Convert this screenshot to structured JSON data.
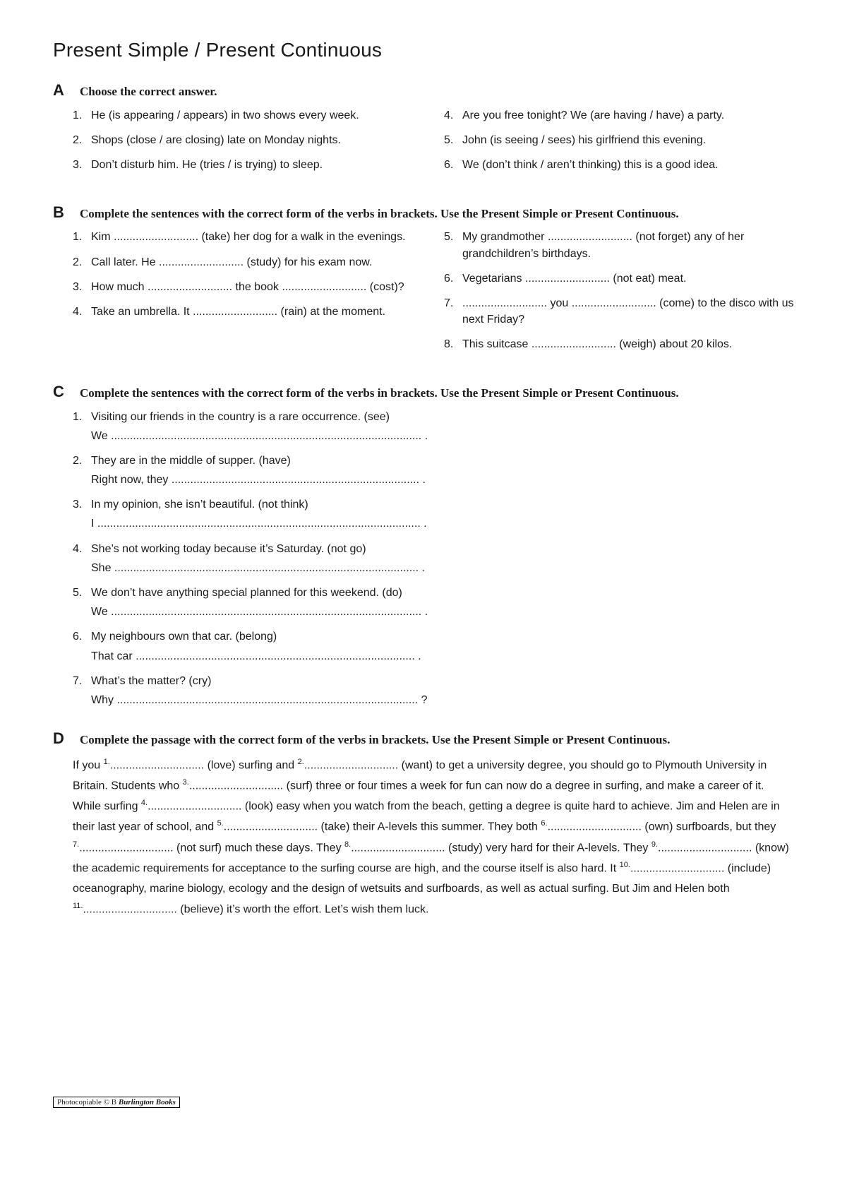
{
  "title": "Present Simple / Present Continuous",
  "sectionA": {
    "letter": "A",
    "instruction": "Choose the correct answer.",
    "left": [
      {
        "n": "1.",
        "t": "He (is appearing / appears) in two shows every week."
      },
      {
        "n": "2.",
        "t": "Shops (close / are closing) late on Monday nights."
      },
      {
        "n": "3.",
        "t": "Don’t disturb him. He (tries / is trying) to sleep."
      }
    ],
    "right": [
      {
        "n": "4.",
        "t": "Are you free tonight? We (are having / have) a party."
      },
      {
        "n": "5.",
        "t": "John (is seeing / sees) his girlfriend this evening."
      },
      {
        "n": "6.",
        "t": "We (don’t think / aren’t thinking) this is a good idea."
      }
    ]
  },
  "sectionB": {
    "letter": "B",
    "instruction": "Complete the sentences with the correct form of the verbs in brackets. Use the Present Simple or Present Continuous.",
    "left": [
      {
        "n": "1.",
        "t": "Kim ........................... (take) her dog for a walk in the evenings."
      },
      {
        "n": "2.",
        "t": "Call later. He ........................... (study) for his exam now."
      },
      {
        "n": "3.",
        "t": "How much ........................... the book ........................... (cost)?"
      },
      {
        "n": "4.",
        "t": "Take an umbrella. It ........................... (rain) at the moment."
      }
    ],
    "right": [
      {
        "n": "5.",
        "t": "My grandmother ........................... (not forget) any of her grandchildren’s birthdays."
      },
      {
        "n": "6.",
        "t": "Vegetarians ........................... (not eat) meat."
      },
      {
        "n": "7.",
        "t": "........................... you ........................... (come) to the disco with us next Friday?"
      },
      {
        "n": "8.",
        "t": "This suitcase ........................... (weigh) about 20 kilos."
      }
    ]
  },
  "sectionC": {
    "letter": "C",
    "instruction": "Complete the sentences with the correct form of the verbs in brackets. Use the Present Simple or Present Continuous.",
    "items": [
      {
        "n": "1.",
        "prompt": "Visiting our friends in the country is a rare occurrence. (see)",
        "ans": "We  ................................................................................................... ."
      },
      {
        "n": "2.",
        "prompt": "They are in the middle of supper. (have)",
        "ans": "Right now, they  ............................................................................... ."
      },
      {
        "n": "3.",
        "prompt": "In my opinion, she isn’t beautiful. (not think)",
        "ans": "I  ....................................................................................................... ."
      },
      {
        "n": "4.",
        "prompt": "She’s not working today because it’s Saturday. (not go)",
        "ans": "She  ................................................................................................. ."
      },
      {
        "n": "5.",
        "prompt": "We don’t have anything special planned for this weekend. (do)",
        "ans": "We  ................................................................................................... ."
      },
      {
        "n": "6.",
        "prompt": "My neighbours own that car. (belong)",
        "ans": "That car  ......................................................................................... ."
      },
      {
        "n": "7.",
        "prompt": "What’s the matter? (cry)",
        "ans": "Why  ................................................................................................ ?"
      }
    ]
  },
  "sectionD": {
    "letter": "D",
    "instruction": "Complete the passage with the correct form of the verbs in brackets. Use the Present Simple or Present Continuous.",
    "passage_html": "If you <sup>1.</sup>.............................. (love) surfing and <sup>2.</sup>.............................. (want) to get a university degree, you should go to Plymouth University in Britain. Students who <sup>3.</sup>.............................. (surf) three or four times a week for fun can now do a degree in surfing, and make a career of it. While surfing <sup>4.</sup>.............................. (look) easy when you watch from the beach, getting a degree is quite hard to achieve. Jim and Helen are in their last year of school, and <sup>5.</sup>.............................. (take) their A-levels this summer. They both <sup>6.</sup>.............................. (own) surfboards, but they <sup>7.</sup>.............................. (not surf) much these days. They <sup>8.</sup>.............................. (study) very hard for their A-levels. They <sup>9.</sup>.............................. (know) the academic requirements for acceptance to the surfing course are high, and the course itself is also hard. It <sup>10.</sup>.............................. (include) oceanography, marine biology, ecology and the design of wetsuits and surfboards, as well as actual surfing. But Jim and Helen both <sup>11.</sup>.............................. (believe) it’s worth the effort. Let’s wish them luck."
  },
  "footer": {
    "left": "Photocopiable © B",
    "right": "Burlington Books"
  }
}
